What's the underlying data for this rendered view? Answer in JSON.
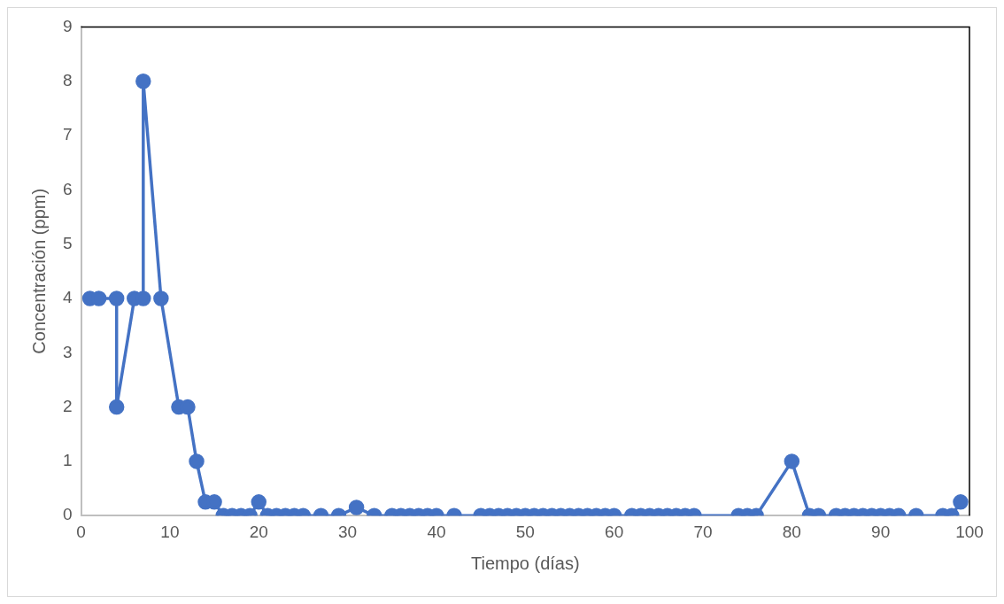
{
  "chart_data": {
    "type": "line",
    "xlabel": "Tiempo (días)",
    "ylabel": "Concentración (ppm)",
    "xlim": [
      0,
      100
    ],
    "xticks": [
      0,
      10,
      20,
      30,
      40,
      50,
      60,
      70,
      80,
      90,
      100
    ],
    "ylim": [
      0,
      9
    ],
    "yticks": [
      0,
      1,
      2,
      3,
      4,
      5,
      6,
      7,
      8,
      9
    ],
    "grid": false,
    "legend": false,
    "marker": "circle",
    "line_style": "solid",
    "series": [
      {
        "color": "#4472c4",
        "x": [
          1,
          2,
          4,
          4,
          6,
          7,
          7,
          9,
          11,
          12,
          13,
          14,
          15,
          16,
          17,
          18,
          19,
          20,
          21,
          22,
          23,
          24,
          25,
          27,
          29,
          31,
          33,
          35,
          36,
          37,
          38,
          39,
          40,
          42,
          45,
          46,
          47,
          48,
          49,
          50,
          51,
          52,
          53,
          54,
          55,
          56,
          57,
          58,
          59,
          60,
          62,
          63,
          64,
          65,
          66,
          67,
          68,
          69,
          74,
          75,
          76,
          80,
          82,
          83,
          85,
          86,
          87,
          88,
          89,
          90,
          91,
          92,
          94,
          97,
          98,
          99
        ],
        "values": [
          4,
          4,
          4,
          2,
          4,
          4,
          8,
          4,
          2,
          2,
          1,
          0.25,
          0.25,
          0,
          0,
          0,
          0,
          0.25,
          0,
          0,
          0,
          0,
          0,
          0,
          0,
          0.15,
          0,
          0,
          0,
          0,
          0,
          0,
          0,
          0,
          0,
          0,
          0,
          0,
          0,
          0,
          0,
          0,
          0,
          0,
          0,
          0,
          0,
          0,
          0,
          0,
          0,
          0,
          0,
          0,
          0,
          0,
          0,
          0,
          0,
          0,
          0,
          1,
          0,
          0,
          0,
          0,
          0,
          0,
          0,
          0,
          0,
          0,
          0,
          0,
          0,
          0.25
        ]
      }
    ]
  }
}
